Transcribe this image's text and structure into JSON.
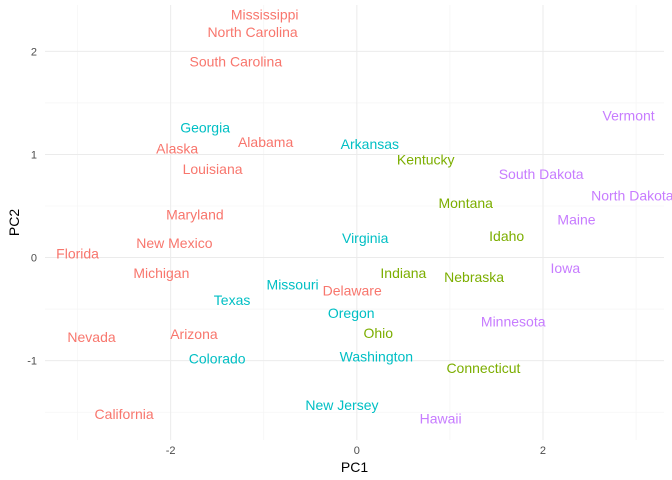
{
  "chart_data": {
    "type": "scatter",
    "title": "",
    "xlabel": "PC1",
    "ylabel": "PC2",
    "xlim": [
      -3.35,
      3.3
    ],
    "ylim": [
      -1.77,
      2.45
    ],
    "x_ticks": [
      -2,
      0,
      2
    ],
    "y_ticks": [
      -1,
      0,
      1,
      2
    ],
    "grid": true,
    "legend": "none",
    "cluster_colors": {
      "1": "#f8766d",
      "2": "#7cae00",
      "3": "#00bfc4",
      "4": "#c77cff"
    },
    "points": [
      {
        "label": "Mississippi",
        "x": -0.99,
        "y": 2.36,
        "cluster": "1"
      },
      {
        "label": "North Carolina",
        "x": -1.12,
        "y": 2.19,
        "cluster": "1"
      },
      {
        "label": "South Carolina",
        "x": -1.3,
        "y": 1.9,
        "cluster": "1"
      },
      {
        "label": "Alabama",
        "x": -0.98,
        "y": 1.12,
        "cluster": "1"
      },
      {
        "label": "Alaska",
        "x": -1.93,
        "y": 1.06,
        "cluster": "1"
      },
      {
        "label": "Louisiana",
        "x": -1.55,
        "y": 0.86,
        "cluster": "1"
      },
      {
        "label": "Maryland",
        "x": -1.74,
        "y": 0.42,
        "cluster": "1"
      },
      {
        "label": "New Mexico",
        "x": -1.96,
        "y": 0.14,
        "cluster": "1"
      },
      {
        "label": "Florida",
        "x": -3.0,
        "y": 0.04,
        "cluster": "1"
      },
      {
        "label": "Michigan",
        "x": -2.1,
        "y": -0.15,
        "cluster": "1"
      },
      {
        "label": "Nevada",
        "x": -2.85,
        "y": -0.77,
        "cluster": "1"
      },
      {
        "label": "Arizona",
        "x": -1.75,
        "y": -0.74,
        "cluster": "1"
      },
      {
        "label": "California",
        "x": -2.5,
        "y": -1.52,
        "cluster": "1"
      },
      {
        "label": "Delaware",
        "x": -0.05,
        "y": -0.32,
        "cluster": "1"
      },
      {
        "label": "Georgia",
        "x": -1.63,
        "y": 1.26,
        "cluster": "3"
      },
      {
        "label": "Arkansas",
        "x": 0.14,
        "y": 1.1,
        "cluster": "3"
      },
      {
        "label": "Virginia",
        "x": 0.09,
        "y": 0.19,
        "cluster": "3"
      },
      {
        "label": "Missouri",
        "x": -0.69,
        "y": -0.26,
        "cluster": "3"
      },
      {
        "label": "Texas",
        "x": -1.34,
        "y": -0.41,
        "cluster": "3"
      },
      {
        "label": "Oregon",
        "x": -0.06,
        "y": -0.54,
        "cluster": "3"
      },
      {
        "label": "Colorado",
        "x": -1.5,
        "y": -0.98,
        "cluster": "3"
      },
      {
        "label": "Washington",
        "x": 0.21,
        "y": -0.96,
        "cluster": "3"
      },
      {
        "label": "New Jersey",
        "x": -0.16,
        "y": -1.43,
        "cluster": "3"
      },
      {
        "label": "Kentucky",
        "x": 0.74,
        "y": 0.95,
        "cluster": "2"
      },
      {
        "label": "Montana",
        "x": 1.17,
        "y": 0.53,
        "cluster": "2"
      },
      {
        "label": "Idaho",
        "x": 1.61,
        "y": 0.21,
        "cluster": "2"
      },
      {
        "label": "Indiana",
        "x": 0.5,
        "y": -0.15,
        "cluster": "2"
      },
      {
        "label": "Nebraska",
        "x": 1.26,
        "y": -0.19,
        "cluster": "2"
      },
      {
        "label": "Ohio",
        "x": 0.23,
        "y": -0.73,
        "cluster": "2"
      },
      {
        "label": "Connecticut",
        "x": 1.36,
        "y": -1.07,
        "cluster": "2"
      },
      {
        "label": "Vermont",
        "x": 2.92,
        "y": 1.38,
        "cluster": "4"
      },
      {
        "label": "South Dakota",
        "x": 1.98,
        "y": 0.81,
        "cluster": "4"
      },
      {
        "label": "North Dakota",
        "x": 2.96,
        "y": 0.6,
        "cluster": "4"
      },
      {
        "label": "Maine",
        "x": 2.36,
        "y": 0.37,
        "cluster": "4"
      },
      {
        "label": "Iowa",
        "x": 2.24,
        "y": -0.1,
        "cluster": "4"
      },
      {
        "label": "Minnesota",
        "x": 1.68,
        "y": -0.62,
        "cluster": "4"
      },
      {
        "label": "Hawaii",
        "x": 0.9,
        "y": -1.56,
        "cluster": "4"
      }
    ]
  }
}
